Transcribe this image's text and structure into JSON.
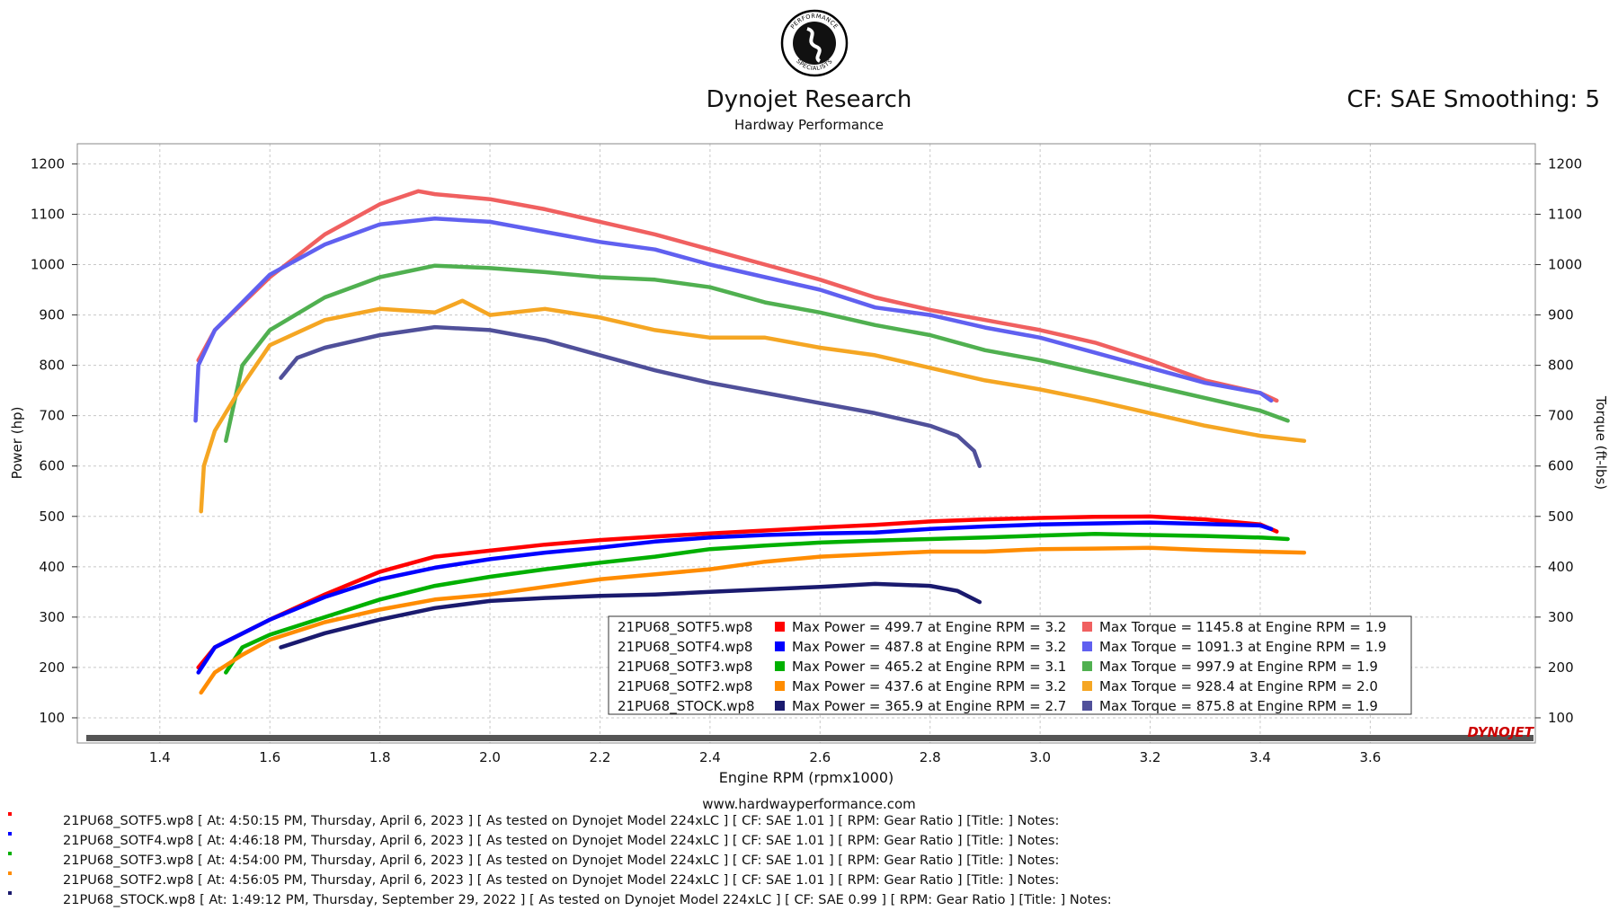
{
  "header": {
    "logo_text": "PERFORMANCE SPECIALISTS",
    "title": "Dynojet Research",
    "subtitle": "Hardway Performance",
    "cf_smoothing": "CF: SAE Smoothing: 5"
  },
  "footer": {
    "website": "www.hardwayperformance.com",
    "brand": "DYNOJET"
  },
  "runs": [
    {
      "text": "21PU68_SOTF5.wp8 [ At: 4:50:15 PM, Thursday, April 6, 2023 ] [ As tested on Dynojet Model 224xLC ] [ CF: SAE 1.01 ] [ RPM: Gear Ratio ] [Title: ]  Notes:",
      "color": "#ff0000"
    },
    {
      "text": "21PU68_SOTF4.wp8 [ At: 4:46:18 PM, Thursday, April 6, 2023 ] [ As tested on Dynojet Model 224xLC ] [ CF: SAE 1.01 ] [ RPM: Gear Ratio ] [Title: ]  Notes:",
      "color": "#0000ff"
    },
    {
      "text": "21PU68_SOTF3.wp8 [ At: 4:54:00 PM, Thursday, April 6, 2023 ] [ As tested on Dynojet Model 224xLC ] [ CF: SAE 1.01 ] [ RPM: Gear Ratio ] [Title: ]  Notes:",
      "color": "#00b000"
    },
    {
      "text": "21PU68_SOTF2.wp8 [ At: 4:56:05 PM, Thursday, April 6, 2023 ] [ As tested on Dynojet Model 224xLC ] [ CF: SAE 1.01 ] [ RPM: Gear Ratio ] [Title: ]  Notes:",
      "color": "#ff8c00"
    },
    {
      "text": "21PU68_STOCK.wp8 [ At: 1:49:12 PM, Thursday, September 29, 2022 ] [ As tested on Dynojet Model 224xLC ] [ CF: SAE 0.99 ] [ RPM: Gear Ratio ] [Title: ]  Notes:",
      "color": "#1a1a6e"
    }
  ],
  "chart_data": {
    "type": "line",
    "xlabel": "Engine RPM (rpmx1000)",
    "ylabel": "Power (hp)",
    "y2label": "Torque (ft-lbs)",
    "xlim": [
      1.25,
      3.9
    ],
    "ylim": [
      50,
      1240
    ],
    "x_ticks": [
      1.4,
      1.6,
      1.8,
      2.0,
      2.2,
      2.4,
      2.6,
      2.8,
      3.0,
      3.2,
      3.4,
      3.6
    ],
    "y_ticks": [
      100,
      200,
      300,
      400,
      500,
      600,
      700,
      800,
      900,
      1000,
      1100,
      1200
    ],
    "grid": true,
    "legend_position": "bottom-right",
    "series": [
      {
        "name": "21PU68_SOTF5.wp8",
        "kind": "power",
        "color": "#ff0000",
        "label": "Max Power = 499.7 at Engine RPM = 3.2",
        "x": [
          1.47,
          1.5,
          1.6,
          1.7,
          1.8,
          1.9,
          2.0,
          2.1,
          2.2,
          2.3,
          2.4,
          2.5,
          2.6,
          2.7,
          2.8,
          2.9,
          3.0,
          3.1,
          3.2,
          3.3,
          3.4,
          3.43
        ],
        "y": [
          200,
          240,
          295,
          345,
          390,
          420,
          432,
          444,
          453,
          460,
          466,
          472,
          478,
          483,
          490,
          494,
          497,
          499,
          499.7,
          494,
          484,
          470
        ]
      },
      {
        "name": "21PU68_SOTF5.wp8",
        "kind": "torque",
        "color": "#f06060",
        "label": "Max Torque = 1145.8 at Engine RPM = 1.9",
        "x": [
          1.47,
          1.5,
          1.6,
          1.7,
          1.8,
          1.87,
          1.9,
          2.0,
          2.1,
          2.2,
          2.3,
          2.4,
          2.5,
          2.6,
          2.7,
          2.8,
          2.9,
          3.0,
          3.1,
          3.2,
          3.3,
          3.4,
          3.43
        ],
        "y": [
          810,
          870,
          975,
          1060,
          1120,
          1145.8,
          1140,
          1130,
          1110,
          1085,
          1060,
          1030,
          1000,
          970,
          935,
          910,
          890,
          870,
          845,
          810,
          770,
          745,
          730
        ]
      },
      {
        "name": "21PU68_SOTF4.wp8",
        "kind": "power",
        "color": "#0000ff",
        "label": "Max Power = 487.8 at Engine RPM = 3.2",
        "x": [
          1.47,
          1.5,
          1.6,
          1.7,
          1.8,
          1.9,
          2.0,
          2.1,
          2.2,
          2.3,
          2.4,
          2.5,
          2.6,
          2.7,
          2.8,
          2.9,
          3.0,
          3.1,
          3.2,
          3.3,
          3.4,
          3.42
        ],
        "y": [
          190,
          240,
          295,
          340,
          375,
          398,
          415,
          428,
          438,
          450,
          458,
          463,
          466,
          468,
          475,
          480,
          484,
          486,
          487.8,
          485,
          482,
          475
        ]
      },
      {
        "name": "21PU68_SOTF4.wp8",
        "kind": "torque",
        "color": "#6060f0",
        "label": "Max Torque = 1091.3 at Engine RPM = 1.9",
        "x": [
          1.465,
          1.47,
          1.5,
          1.6,
          1.7,
          1.8,
          1.9,
          2.0,
          2.1,
          2.2,
          2.3,
          2.4,
          2.5,
          2.6,
          2.7,
          2.8,
          2.9,
          3.0,
          3.1,
          3.2,
          3.3,
          3.4,
          3.42
        ],
        "y": [
          690,
          800,
          870,
          980,
          1040,
          1080,
          1091.3,
          1085,
          1065,
          1045,
          1030,
          1000,
          975,
          950,
          915,
          900,
          875,
          855,
          825,
          795,
          765,
          745,
          730
        ]
      },
      {
        "name": "21PU68_SOTF3.wp8",
        "kind": "power",
        "color": "#00b000",
        "label": "Max Power = 465.2 at Engine RPM = 3.1",
        "x": [
          1.52,
          1.55,
          1.6,
          1.7,
          1.8,
          1.9,
          2.0,
          2.1,
          2.2,
          2.3,
          2.4,
          2.5,
          2.6,
          2.7,
          2.8,
          2.9,
          3.0,
          3.1,
          3.2,
          3.3,
          3.4,
          3.45
        ],
        "y": [
          190,
          240,
          265,
          300,
          335,
          362,
          380,
          395,
          408,
          420,
          435,
          442,
          448,
          452,
          455,
          458,
          462,
          465.2,
          463,
          461,
          458,
          455
        ]
      },
      {
        "name": "21PU68_SOTF3.wp8",
        "kind": "torque",
        "color": "#50b050",
        "label": "Max Torque = 997.9 at Engine RPM = 1.9",
        "x": [
          1.52,
          1.55,
          1.6,
          1.7,
          1.8,
          1.9,
          2.0,
          2.1,
          2.2,
          2.3,
          2.4,
          2.5,
          2.6,
          2.7,
          2.8,
          2.9,
          3.0,
          3.1,
          3.2,
          3.3,
          3.4,
          3.45
        ],
        "y": [
          650,
          800,
          870,
          935,
          975,
          997.9,
          993,
          985,
          975,
          970,
          955,
          925,
          905,
          880,
          860,
          830,
          810,
          785,
          760,
          735,
          710,
          690
        ]
      },
      {
        "name": "21PU68_SOTF2.wp8",
        "kind": "power",
        "color": "#ff8c00",
        "label": "Max Power = 437.6 at Engine RPM = 3.2",
        "x": [
          1.475,
          1.5,
          1.55,
          1.6,
          1.7,
          1.8,
          1.9,
          2.0,
          2.1,
          2.2,
          2.3,
          2.4,
          2.5,
          2.6,
          2.7,
          2.8,
          2.9,
          3.0,
          3.1,
          3.2,
          3.3,
          3.4,
          3.48
        ],
        "y": [
          150,
          190,
          225,
          255,
          290,
          315,
          335,
          345,
          360,
          375,
          385,
          395,
          410,
          420,
          425,
          430,
          430,
          435,
          436,
          437.6,
          433,
          430,
          428
        ]
      },
      {
        "name": "21PU68_SOTF2.wp8",
        "kind": "torque",
        "color": "#f5a623",
        "label": "Max Torque = 928.4 at Engine RPM = 2.0",
        "x": [
          1.475,
          1.48,
          1.5,
          1.55,
          1.6,
          1.7,
          1.8,
          1.9,
          1.95,
          2.0,
          2.1,
          2.2,
          2.3,
          2.4,
          2.5,
          2.6,
          2.7,
          2.8,
          2.9,
          3.0,
          3.1,
          3.2,
          3.3,
          3.4,
          3.48
        ],
        "y": [
          510,
          600,
          670,
          760,
          840,
          890,
          912,
          905,
          928.4,
          900,
          912,
          895,
          870,
          855,
          855,
          835,
          820,
          795,
          770,
          752,
          730,
          705,
          680,
          660,
          650
        ]
      },
      {
        "name": "21PU68_STOCK.wp8",
        "kind": "power",
        "color": "#1a1a6e",
        "label": "Max Power = 365.9 at Engine RPM = 2.7",
        "x": [
          1.62,
          1.7,
          1.8,
          1.9,
          2.0,
          2.1,
          2.2,
          2.3,
          2.4,
          2.5,
          2.6,
          2.7,
          2.8,
          2.85,
          2.89
        ],
        "y": [
          240,
          268,
          295,
          318,
          332,
          338,
          342,
          345,
          350,
          355,
          360,
          365.9,
          362,
          352,
          330
        ]
      },
      {
        "name": "21PU68_STOCK.wp8",
        "kind": "torque",
        "color": "#50509a",
        "label": "Max Torque = 875.8 at Engine RPM = 1.9",
        "x": [
          1.62,
          1.65,
          1.7,
          1.8,
          1.9,
          2.0,
          2.1,
          2.2,
          2.3,
          2.4,
          2.5,
          2.6,
          2.7,
          2.8,
          2.85,
          2.88,
          2.89
        ],
        "y": [
          775,
          815,
          835,
          860,
          875.8,
          870,
          850,
          820,
          790,
          765,
          745,
          725,
          705,
          680,
          660,
          630,
          600
        ]
      }
    ]
  }
}
